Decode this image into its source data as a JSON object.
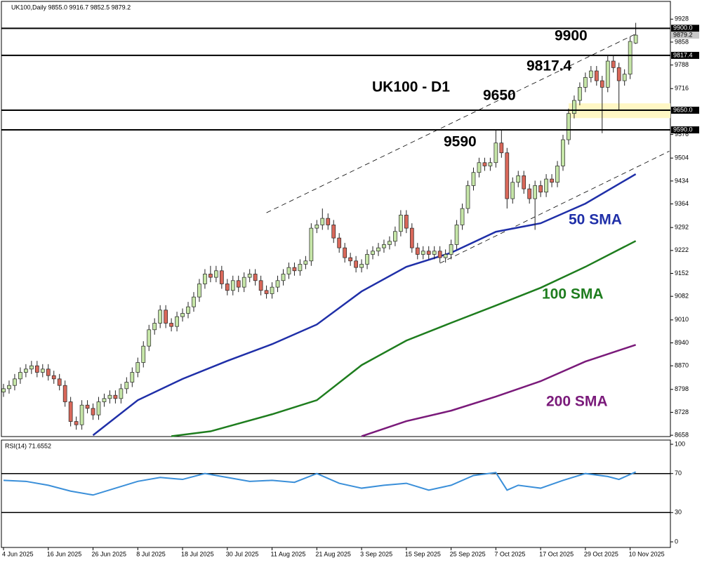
{
  "chart_data": {
    "type": "candlestick",
    "title": "UK100,Daily  9855.0 9916.7 9852.5 9879.2",
    "up_color": "#c6e6a8",
    "down_color": "#d9685a",
    "categories": [
      "4 Jun 2025",
      null,
      null,
      null,
      null,
      null,
      null,
      null,
      "16 Jun 2025",
      null,
      null,
      null,
      null,
      null,
      null,
      null,
      "26 Jun 2025",
      null,
      null,
      null,
      null,
      null,
      null,
      null,
      "8 Jul 2025",
      null,
      null,
      null,
      null,
      null,
      null,
      null,
      "18 Jul 2025",
      null,
      null,
      null,
      null,
      null,
      null,
      null,
      "30 Jul 2025",
      null,
      null,
      null,
      null,
      null,
      null,
      null,
      "11 Aug 2025",
      null,
      null,
      null,
      null,
      null,
      null,
      null,
      "21 Aug 2025",
      null,
      null,
      null,
      null,
      null,
      null,
      null,
      "3 Sep 2025",
      null,
      null,
      null,
      null,
      null,
      null,
      null,
      "15 Sep 2025",
      null,
      null,
      null,
      null,
      null,
      null,
      null,
      "25 Sep 2025",
      null,
      null,
      null,
      null,
      null,
      null,
      null,
      "7 Oct 2025",
      null,
      null,
      null,
      null,
      null,
      null,
      null,
      "17 Oct 2025",
      null,
      null,
      null,
      null,
      null,
      null,
      null,
      "29 Oct 2025",
      null,
      null,
      null,
      null,
      null,
      null,
      null,
      "10 Nov 2025",
      null
    ],
    "candles": [
      [
        8790,
        8815,
        8775,
        8800
      ],
      [
        8800,
        8825,
        8785,
        8810
      ],
      [
        8810,
        8845,
        8795,
        8830
      ],
      [
        8830,
        8865,
        8815,
        8850
      ],
      [
        8850,
        8875,
        8835,
        8860
      ],
      [
        8860,
        8885,
        8845,
        8870
      ],
      [
        8870,
        8885,
        8835,
        8850
      ],
      [
        8850,
        8875,
        8835,
        8860
      ],
      [
        8860,
        8875,
        8825,
        8840
      ],
      [
        8840,
        8855,
        8815,
        8830
      ],
      [
        8830,
        8845,
        8795,
        8810
      ],
      [
        8810,
        8825,
        8745,
        8760
      ],
      [
        8760,
        8775,
        8685,
        8700
      ],
      [
        8700,
        8715,
        8675,
        8690
      ],
      [
        8690,
        8765,
        8675,
        8750
      ],
      [
        8750,
        8765,
        8725,
        8740
      ],
      [
        8740,
        8755,
        8705,
        8720
      ],
      [
        8720,
        8775,
        8705,
        8760
      ],
      [
        8760,
        8785,
        8745,
        8770
      ],
      [
        8770,
        8795,
        8755,
        8780
      ],
      [
        8780,
        8795,
        8755,
        8770
      ],
      [
        8770,
        8815,
        8755,
        8800
      ],
      [
        8800,
        8835,
        8785,
        8820
      ],
      [
        8820,
        8865,
        8805,
        8850
      ],
      [
        8850,
        8895,
        8835,
        8880
      ],
      [
        8880,
        8945,
        8865,
        8930
      ],
      [
        8930,
        8995,
        8915,
        8980
      ],
      [
        8980,
        9015,
        8965,
        9000
      ],
      [
        9000,
        9055,
        8985,
        9040
      ],
      [
        9040,
        9055,
        8985,
        9000
      ],
      [
        9000,
        9015,
        8975,
        8990
      ],
      [
        8990,
        9035,
        8975,
        9020
      ],
      [
        9020,
        9045,
        9005,
        9030
      ],
      [
        9030,
        9065,
        9015,
        9050
      ],
      [
        9050,
        9095,
        9035,
        9080
      ],
      [
        9080,
        9135,
        9065,
        9120
      ],
      [
        9120,
        9165,
        9105,
        9150
      ],
      [
        9150,
        9175,
        9125,
        9140
      ],
      [
        9140,
        9175,
        9125,
        9160
      ],
      [
        9160,
        9175,
        9105,
        9120
      ],
      [
        9120,
        9135,
        9085,
        9100
      ],
      [
        9100,
        9145,
        9085,
        9130
      ],
      [
        9130,
        9145,
        9095,
        9110
      ],
      [
        9110,
        9155,
        9095,
        9140
      ],
      [
        9140,
        9165,
        9125,
        9150
      ],
      [
        9150,
        9165,
        9115,
        9130
      ],
      [
        9130,
        9145,
        9085,
        9100
      ],
      [
        9100,
        9115,
        9075,
        9090
      ],
      [
        9090,
        9125,
        9075,
        9110
      ],
      [
        9110,
        9145,
        9095,
        9130
      ],
      [
        9130,
        9165,
        9115,
        9150
      ],
      [
        9150,
        9185,
        9135,
        9170
      ],
      [
        9170,
        9185,
        9145,
        9160
      ],
      [
        9160,
        9195,
        9145,
        9180
      ],
      [
        9180,
        9205,
        9165,
        9190
      ],
      [
        9190,
        9305,
        9175,
        9290
      ],
      [
        9290,
        9315,
        9275,
        9300
      ],
      [
        9300,
        9350,
        9285,
        9320
      ],
      [
        9320,
        9335,
        9285,
        9300
      ],
      [
        9300,
        9315,
        9245,
        9260
      ],
      [
        9260,
        9275,
        9215,
        9230
      ],
      [
        9230,
        9245,
        9185,
        9200
      ],
      [
        9200,
        9215,
        9175,
        9190
      ],
      [
        9190,
        9205,
        9155,
        9170
      ],
      [
        9170,
        9195,
        9155,
        9180
      ],
      [
        9180,
        9225,
        9165,
        9210
      ],
      [
        9210,
        9235,
        9195,
        9220
      ],
      [
        9220,
        9245,
        9205,
        9230
      ],
      [
        9230,
        9255,
        9215,
        9240
      ],
      [
        9240,
        9265,
        9225,
        9250
      ],
      [
        9250,
        9295,
        9235,
        9280
      ],
      [
        9280,
        9345,
        9265,
        9330
      ],
      [
        9330,
        9345,
        9275,
        9290
      ],
      [
        9290,
        9305,
        9215,
        9230
      ],
      [
        9230,
        9245,
        9195,
        9210
      ],
      [
        9210,
        9235,
        9195,
        9220
      ],
      [
        9220,
        9235,
        9195,
        9210
      ],
      [
        9210,
        9235,
        9195,
        9220
      ],
      [
        9220,
        9235,
        9185,
        9200
      ],
      [
        9200,
        9225,
        9185,
        9210
      ],
      [
        9210,
        9255,
        9195,
        9240
      ],
      [
        9240,
        9315,
        9225,
        9300
      ],
      [
        9300,
        9365,
        9285,
        9350
      ],
      [
        9350,
        9435,
        9335,
        9420
      ],
      [
        9420,
        9475,
        9405,
        9460
      ],
      [
        9460,
        9505,
        9445,
        9490
      ],
      [
        9490,
        9505,
        9465,
        9480
      ],
      [
        9480,
        9505,
        9465,
        9490
      ],
      [
        9490,
        9590,
        9475,
        9550
      ],
      [
        9550,
        9590,
        9505,
        9520
      ],
      [
        9520,
        9535,
        9350,
        9380
      ],
      [
        9380,
        9445,
        9365,
        9430
      ],
      [
        9430,
        9465,
        9415,
        9450
      ],
      [
        9450,
        9465,
        9395,
        9410
      ],
      [
        9410,
        9425,
        9365,
        9380
      ],
      [
        9380,
        9435,
        9285,
        9420
      ],
      [
        9420,
        9435,
        9385,
        9400
      ],
      [
        9400,
        9455,
        9385,
        9440
      ],
      [
        9440,
        9455,
        9415,
        9430
      ],
      [
        9430,
        9495,
        9415,
        9480
      ],
      [
        9480,
        9575,
        9465,
        9560
      ],
      [
        9560,
        9655,
        9545,
        9640
      ],
      [
        9640,
        9695,
        9625,
        9680
      ],
      [
        9680,
        9735,
        9665,
        9720
      ],
      [
        9720,
        9765,
        9705,
        9750
      ],
      [
        9750,
        9785,
        9735,
        9770
      ],
      [
        9770,
        9785,
        9725,
        9740
      ],
      [
        9740,
        9755,
        9580,
        9720
      ],
      [
        9720,
        9815,
        9705,
        9800
      ],
      [
        9800,
        9815,
        9765,
        9780
      ],
      [
        9780,
        9795,
        9650,
        9740
      ],
      [
        9740,
        9775,
        9725,
        9760
      ],
      [
        9760,
        9875,
        9745,
        9860
      ],
      [
        9855.0,
        9916.7,
        9852.5,
        9879.2
      ]
    ],
    "ylim": [
      8654,
      9980
    ],
    "yticks": [
      9928,
      9858,
      9788,
      9716,
      9576,
      9504,
      9434,
      9364,
      9292,
      9222,
      9152,
      9082,
      9010,
      8940,
      8870,
      8798,
      8728,
      8658
    ],
    "grid": false,
    "series": [
      {
        "name": "50 SMA",
        "color": "#1f2fa8",
        "x": [
          16,
          24,
          32,
          40,
          48,
          56,
          64,
          72,
          80,
          88,
          96,
          104,
          113
        ],
        "values": [
          8658,
          8765,
          8830,
          8885,
          8936,
          8996,
          9097,
          9172,
          9215,
          9279,
          9305,
          9365,
          9455
        ]
      },
      {
        "name": "100 SMA",
        "color": "#1e7d1e",
        "x": [
          30,
          37,
          48,
          56,
          64,
          72,
          80,
          88,
          96,
          104,
          113
        ],
        "values": [
          8655,
          8670,
          8722,
          8765,
          8872,
          8947,
          9001,
          9054,
          9108,
          9172,
          9251
        ]
      },
      {
        "name": "200 SMA",
        "color": "#7a1a7a",
        "x": [
          64,
          72,
          80,
          88,
          96,
          104,
          113
        ],
        "values": [
          8655,
          8701,
          8733,
          8776,
          8823,
          8883,
          8934
        ]
      }
    ],
    "levels": [
      {
        "value": 9900,
        "label": "9900.0",
        "annotation": "9900"
      },
      {
        "value": 9817.4,
        "label": "9817.4",
        "annotation": "9817.4"
      },
      {
        "value": 9650,
        "label": "9650.0",
        "annotation": "9650"
      },
      {
        "value": 9590,
        "label": "9590.0",
        "annotation": "9590"
      }
    ],
    "current_price": {
      "value": 9879.2,
      "label": "9879.2"
    },
    "zone": [
      9626,
      9671
    ],
    "trendlines": [
      {
        "x": [
          47,
          113
        ],
        "values": [
          9337,
          9883
        ]
      },
      {
        "x": [
          78,
          119
        ],
        "values": [
          9183,
          9525
        ]
      }
    ],
    "annotations": [
      {
        "text": "UK100 - D1",
        "color": "#000000"
      }
    ],
    "rsi": {
      "title": "RSI(14) 71.6552",
      "color": "#3a8fd9",
      "ylim": [
        0,
        100
      ],
      "yticks": [
        100,
        70,
        30,
        0
      ],
      "levels": [
        70,
        30
      ],
      "x": [
        0,
        4,
        8,
        12,
        16,
        20,
        24,
        28,
        32,
        36,
        40,
        44,
        48,
        52,
        56,
        60,
        64,
        68,
        72,
        76,
        80,
        84,
        88,
        90,
        92,
        96,
        100,
        104,
        108,
        110,
        113
      ],
      "values": [
        63,
        62,
        58,
        52,
        48,
        55,
        62,
        66,
        64,
        70,
        66,
        62,
        63,
        61,
        70,
        60,
        55,
        58,
        60,
        53,
        58,
        68,
        71,
        53,
        58,
        55,
        63,
        70,
        67,
        64,
        71.6552
      ]
    }
  }
}
